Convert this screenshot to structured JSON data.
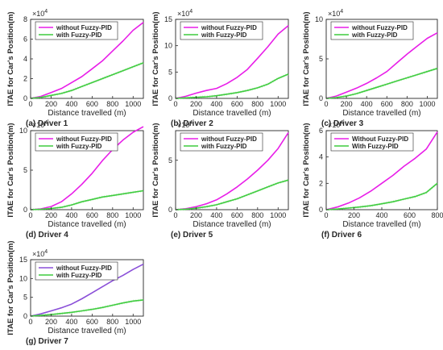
{
  "colors": {
    "without": "#e81ee8",
    "without_alt": "#8a4fd8",
    "with": "#3fcc3f",
    "axis": "#262626",
    "grid_band": "#8fe08f"
  },
  "chart_data": [
    {
      "type": "line",
      "caption": "(a) Driver 1",
      "xlabel": "Distance travelled (m)",
      "ylabel": "ITAE for Car's Position(m)",
      "multiplier": "×10",
      "exponent": "4",
      "xlim": [
        0,
        1100
      ],
      "ylim": [
        0,
        8
      ],
      "xticks": [
        0,
        200,
        400,
        600,
        800,
        1000
      ],
      "yticks": [
        0,
        2,
        4,
        6,
        8
      ],
      "grid": false,
      "legend_position": "top-left",
      "series": [
        {
          "name": "without Fuzzy-PID",
          "color": "#e81ee8",
          "x": [
            0,
            100,
            200,
            300,
            400,
            500,
            600,
            700,
            800,
            900,
            1000,
            1100
          ],
          "y": [
            0,
            0.2,
            0.6,
            1.0,
            1.6,
            2.2,
            3.0,
            3.8,
            4.8,
            5.8,
            6.9,
            7.7
          ]
        },
        {
          "name": "with Fuzzy-PID",
          "color": "#3fcc3f",
          "x": [
            0,
            100,
            200,
            300,
            400,
            500,
            600,
            700,
            800,
            900,
            1000,
            1100
          ],
          "y": [
            0,
            0.1,
            0.3,
            0.5,
            0.8,
            1.2,
            1.6,
            2.0,
            2.4,
            2.8,
            3.2,
            3.6
          ]
        }
      ]
    },
    {
      "type": "line",
      "caption": "(b) Driver 2",
      "xlabel": "Distance travelled (m)",
      "ylabel": "ITAE for Car's Position(m)",
      "multiplier": "×10",
      "exponent": "4",
      "xlim": [
        0,
        1100
      ],
      "ylim": [
        0,
        15
      ],
      "xticks": [
        0,
        200,
        400,
        600,
        800,
        1000
      ],
      "yticks": [
        0,
        5,
        10,
        15
      ],
      "grid": false,
      "legend_position": "top-left",
      "series": [
        {
          "name": "without Fuzzy-PID",
          "color": "#e81ee8",
          "x": [
            0,
            100,
            200,
            300,
            400,
            500,
            600,
            700,
            800,
            900,
            1000,
            1100
          ],
          "y": [
            0,
            0.4,
            1.0,
            1.5,
            1.9,
            2.8,
            4.0,
            5.5,
            7.6,
            9.8,
            12.2,
            13.8
          ]
        },
        {
          "name": "with Fuzzy-PID",
          "color": "#3fcc3f",
          "x": [
            0,
            100,
            200,
            300,
            400,
            500,
            600,
            700,
            800,
            900,
            1000,
            1100
          ],
          "y": [
            0,
            0.1,
            0.2,
            0.3,
            0.5,
            0.8,
            1.1,
            1.5,
            2.0,
            2.7,
            3.8,
            4.6
          ]
        }
      ]
    },
    {
      "type": "line",
      "caption": "(c) Driver 3",
      "xlabel": "Distance travelled (m)",
      "ylabel": "ITAE for Car's Position(m)",
      "multiplier": "×10",
      "exponent": "4",
      "xlim": [
        0,
        1100
      ],
      "ylim": [
        0,
        10
      ],
      "xticks": [
        0,
        200,
        400,
        600,
        800,
        1000
      ],
      "yticks": [
        0,
        5,
        10
      ],
      "grid": false,
      "legend_position": "top-left",
      "series": [
        {
          "name": "without Fuzzy-PID",
          "color": "#e81ee8",
          "x": [
            0,
            100,
            200,
            300,
            400,
            500,
            600,
            700,
            800,
            900,
            1000,
            1100
          ],
          "y": [
            0,
            0.3,
            0.8,
            1.3,
            1.9,
            2.6,
            3.4,
            4.5,
            5.6,
            6.6,
            7.6,
            8.3
          ]
        },
        {
          "name": "with Fuzzy-PID",
          "color": "#3fcc3f",
          "x": [
            0,
            100,
            200,
            300,
            400,
            500,
            600,
            700,
            800,
            900,
            1000,
            1100
          ],
          "y": [
            0,
            0.1,
            0.3,
            0.6,
            1.0,
            1.4,
            1.8,
            2.2,
            2.6,
            3.0,
            3.4,
            3.8
          ]
        }
      ]
    },
    {
      "type": "line",
      "caption": "(d) Driver 4",
      "xlabel": "Distance travelled (m)",
      "ylabel": "ITAE for Car's Position(m)",
      "multiplier": "×10",
      "exponent": "4",
      "xlim": [
        0,
        1100
      ],
      "ylim": [
        0,
        10
      ],
      "xticks": [
        0,
        200,
        400,
        600,
        800,
        1000
      ],
      "yticks": [
        0,
        5,
        10
      ],
      "grid": false,
      "legend_position": "top-left",
      "series": [
        {
          "name": "without Fuzzy-PID",
          "color": "#e81ee8",
          "x": [
            0,
            100,
            200,
            300,
            400,
            500,
            600,
            700,
            800,
            900,
            1000,
            1100
          ],
          "y": [
            0,
            0.1,
            0.4,
            1.0,
            2.0,
            3.2,
            4.6,
            6.2,
            7.6,
            8.8,
            9.8,
            10.5
          ]
        },
        {
          "name": "with Fuzzy-PID",
          "color": "#3fcc3f",
          "x": [
            0,
            100,
            200,
            300,
            400,
            500,
            600,
            700,
            800,
            900,
            1000,
            1100
          ],
          "y": [
            0,
            0.05,
            0.15,
            0.3,
            0.6,
            1.0,
            1.3,
            1.6,
            1.8,
            2.0,
            2.2,
            2.4
          ]
        }
      ]
    },
    {
      "type": "line",
      "caption": "(e) Driver 5",
      "xlabel": "Distance travelled (m)",
      "ylabel": "ITAE for Car's Position(m)",
      "multiplier": "×10",
      "exponent": "4",
      "xlim": [
        0,
        1100
      ],
      "ylim": [
        0,
        8
      ],
      "xticks": [
        0,
        200,
        400,
        600,
        800,
        1000
      ],
      "yticks": [
        0,
        5
      ],
      "grid": false,
      "legend_position": "top-left",
      "series": [
        {
          "name": "without Fuzzy-PID",
          "color": "#e81ee8",
          "x": [
            0,
            100,
            200,
            300,
            400,
            500,
            600,
            700,
            800,
            900,
            1000,
            1100
          ],
          "y": [
            0,
            0.1,
            0.3,
            0.6,
            1.0,
            1.6,
            2.3,
            3.1,
            4.0,
            5.0,
            6.2,
            7.8
          ]
        },
        {
          "name": "with Fuzzy-PID",
          "color": "#3fcc3f",
          "x": [
            0,
            100,
            200,
            300,
            400,
            500,
            600,
            700,
            800,
            900,
            1000,
            1100
          ],
          "y": [
            0,
            0.05,
            0.15,
            0.3,
            0.5,
            0.8,
            1.1,
            1.5,
            1.9,
            2.3,
            2.7,
            3.0
          ]
        }
      ]
    },
    {
      "type": "line",
      "caption": "(f) Driver 6",
      "xlabel": "Distance travelled (m)",
      "ylabel": "ITAE for Car's Position(m)",
      "multiplier": "×10",
      "exponent": "4",
      "xlim": [
        0,
        800
      ],
      "ylim": [
        0,
        6
      ],
      "xticks": [
        0,
        200,
        400,
        600,
        800
      ],
      "yticks": [
        0,
        2,
        4,
        6
      ],
      "grid": false,
      "legend_position": "top-left",
      "series": [
        {
          "name": "Without Fuzzy-PID",
          "color": "#e81ee8",
          "x": [
            0,
            80,
            160,
            240,
            320,
            400,
            480,
            560,
            640,
            720,
            800
          ],
          "y": [
            0,
            0.2,
            0.5,
            0.9,
            1.4,
            2.0,
            2.6,
            3.3,
            3.9,
            4.6,
            5.9
          ]
        },
        {
          "name": "With Fuzzy-PID",
          "color": "#3fcc3f",
          "x": [
            0,
            80,
            160,
            240,
            320,
            400,
            480,
            560,
            640,
            720,
            800
          ],
          "y": [
            0,
            0.05,
            0.12,
            0.2,
            0.3,
            0.45,
            0.6,
            0.8,
            1.0,
            1.3,
            2.0
          ]
        }
      ]
    },
    {
      "type": "line",
      "caption": "(g) Driver 7",
      "xlabel": "Distance travelled (m)",
      "ylabel": "ITAE for Car's Position(m)",
      "multiplier": "×10",
      "exponent": "4",
      "xlim": [
        0,
        1100
      ],
      "ylim": [
        0,
        15
      ],
      "xticks": [
        0,
        200,
        400,
        600,
        800,
        1000
      ],
      "yticks": [
        0,
        5,
        10,
        15
      ],
      "grid": false,
      "legend_position": "top-left",
      "series": [
        {
          "name": "without Fuzzy-PID",
          "color": "#8a4fd8",
          "x": [
            0,
            100,
            200,
            300,
            400,
            500,
            600,
            700,
            800,
            900,
            1000,
            1100
          ],
          "y": [
            0,
            0.6,
            1.4,
            2.2,
            3.2,
            4.6,
            6.2,
            7.8,
            9.4,
            10.8,
            12.4,
            13.8
          ]
        },
        {
          "name": "with Fuzzy-PID",
          "color": "#3fcc3f",
          "x": [
            0,
            100,
            200,
            300,
            400,
            500,
            600,
            700,
            800,
            900,
            1000,
            1100
          ],
          "y": [
            0,
            0.2,
            0.4,
            0.7,
            1.0,
            1.4,
            1.8,
            2.3,
            2.9,
            3.5,
            4.0,
            4.3
          ]
        }
      ]
    }
  ]
}
